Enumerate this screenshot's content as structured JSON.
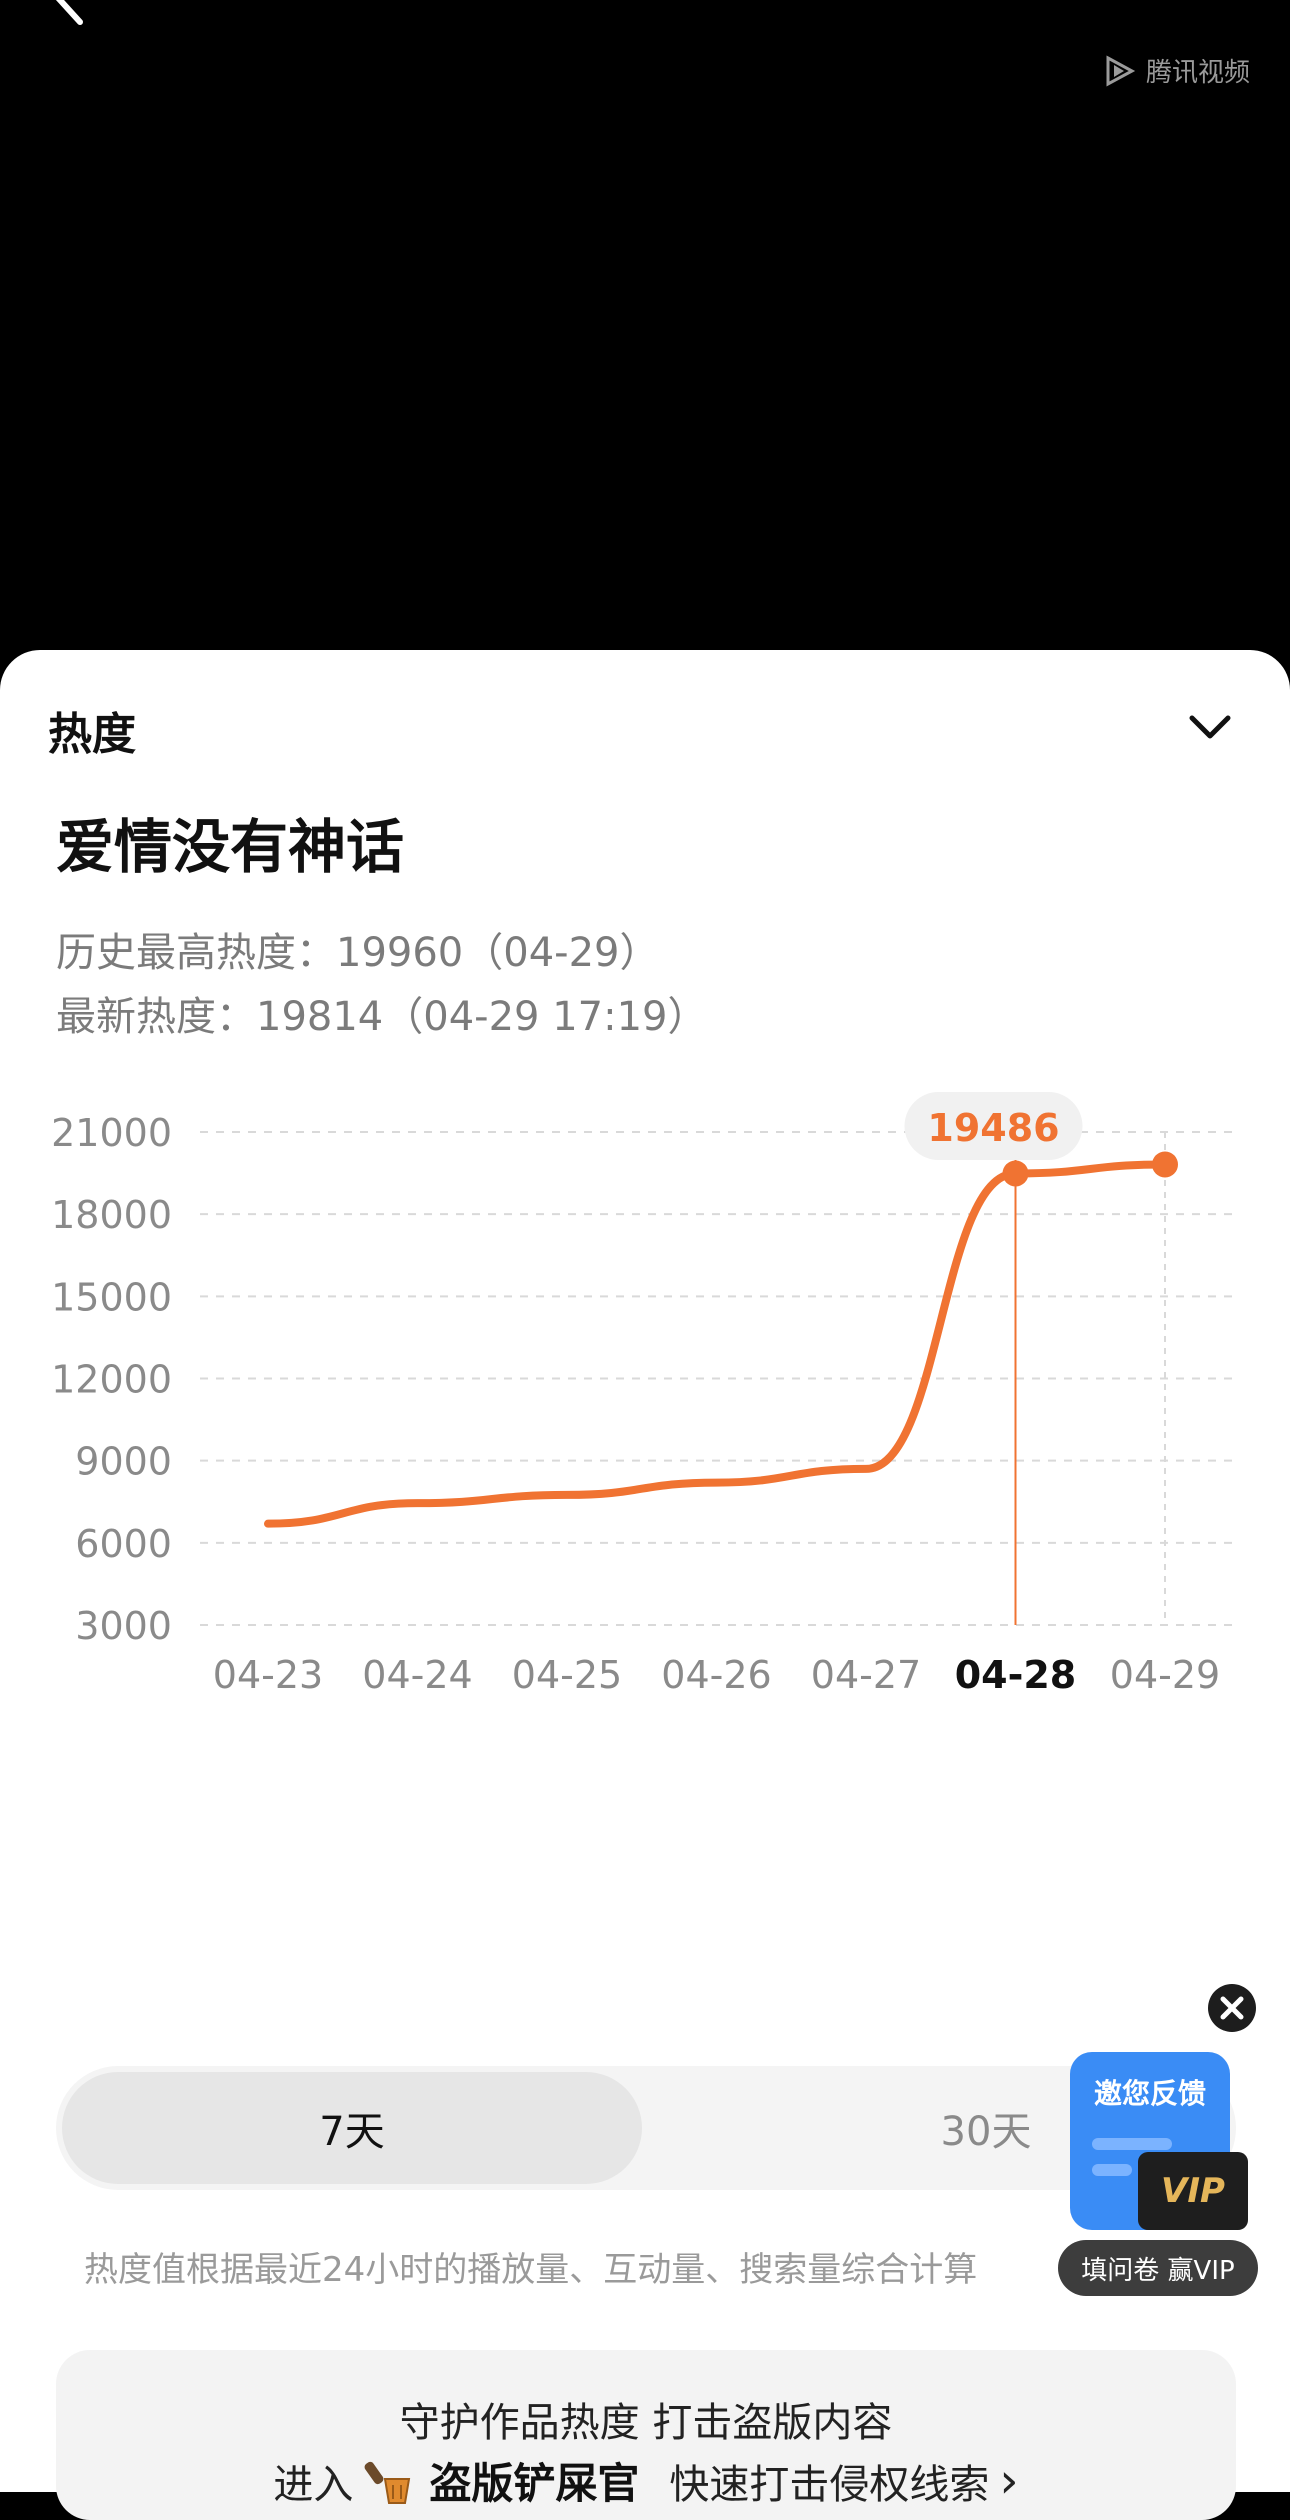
{
  "watermark": {
    "text": "腾讯视频"
  },
  "sheet": {
    "header": "热度",
    "title": "爱情没有神话",
    "history_high": "历史最高热度：19960（04-29）",
    "latest": "最新热度：19814（04-29 17:19）"
  },
  "chart_data": {
    "type": "line",
    "x": [
      "04-23",
      "04-24",
      "04-25",
      "04-26",
      "04-27",
      "04-28",
      "04-29"
    ],
    "series": [
      {
        "values": [
          6700,
          7450,
          7750,
          8200,
          8700,
          19486,
          19814
        ]
      }
    ],
    "y_ticks": [
      "21000",
      "18000",
      "15000",
      "12000",
      "9000",
      "6000",
      "3000"
    ],
    "ylim": [
      3000,
      21000
    ],
    "grid": true,
    "highlight": {
      "x": "04-28",
      "label": "19486"
    },
    "colors": {
      "line": "#F07332",
      "grid": "#d9d9d9",
      "tick": "#8a8a8a"
    }
  },
  "tabs": {
    "seven": "7天",
    "thirty": "30天"
  },
  "footnote": "热度值根据最近24小时的播放量、互动量、搜索量综合计算",
  "banner": {
    "line1": "守护作品热度 打击盗版内容",
    "prefix": "进入",
    "brand": "盗版铲屎官",
    "action": "快速打击侵权线索",
    "arrow": "›"
  },
  "float": {
    "card_title": "邀您反馈",
    "vip": "VIP",
    "pill": "填问卷 赢VIP"
  }
}
